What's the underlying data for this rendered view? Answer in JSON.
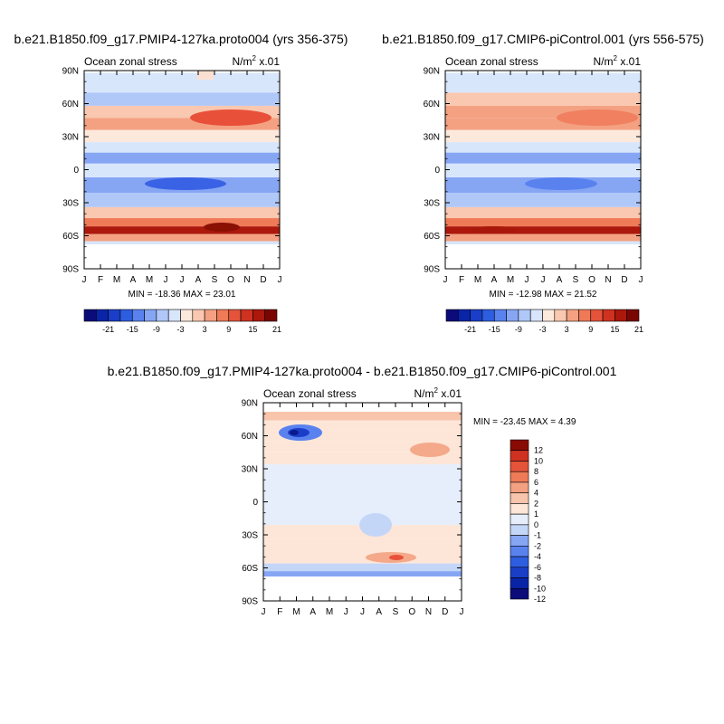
{
  "chart_data": [
    {
      "type": "heatmap",
      "title": "b.e21.B1850.f09_g17.PMIP4-127ka.proto004 (yrs 356-375)",
      "subtitle_left": "Ocean zonal stress",
      "units_base": "N/m",
      "units_exp": "2",
      "units_scale": "x.01",
      "x_ticks": [
        "J",
        "F",
        "M",
        "A",
        "M",
        "J",
        "J",
        "A",
        "S",
        "O",
        "N",
        "D",
        "J"
      ],
      "y_ticks": [
        "90N",
        "60N",
        "30N",
        "0",
        "30S",
        "60S",
        "90S"
      ],
      "ylim": [
        -90,
        90
      ],
      "stats": "MIN = -18.36 MAX =  23.01",
      "colorbar_labels": [
        "-21",
        "-15",
        "-9",
        "-3",
        "3",
        "9",
        "15",
        "21"
      ],
      "bands": [
        {
          "lat": 76,
          "value": -2
        },
        {
          "lat": 64,
          "value": -4
        },
        {
          "lat": 52,
          "value": 5
        },
        {
          "lat": 42,
          "value": 8
        },
        {
          "lat": 30,
          "value": 2
        },
        {
          "lat": 20,
          "value": -3
        },
        {
          "lat": 11,
          "value": -8
        },
        {
          "lat": 0,
          "value": -3
        },
        {
          "lat": -14,
          "value": -9
        },
        {
          "lat": -28,
          "value": -4
        },
        {
          "lat": -40,
          "value": 3
        },
        {
          "lat": -48,
          "value": 10
        },
        {
          "lat": -55,
          "value": 20
        },
        {
          "lat": -62,
          "value": 8
        },
        {
          "lat": -68,
          "value": -3
        }
      ]
    },
    {
      "type": "heatmap",
      "title": "b.e21.B1850.f09_g17.CMIP6-piControl.001 (yrs 556-575)",
      "subtitle_left": "Ocean zonal stress",
      "units_base": "N/m",
      "units_exp": "2",
      "units_scale": "x.01",
      "x_ticks": [
        "J",
        "F",
        "M",
        "A",
        "M",
        "J",
        "J",
        "A",
        "S",
        "O",
        "N",
        "D",
        "J"
      ],
      "y_ticks": [
        "90N",
        "60N",
        "30N",
        "0",
        "30S",
        "60S",
        "90S"
      ],
      "ylim": [
        -90,
        90
      ],
      "stats": "MIN = -12.98 MAX =  21.52",
      "colorbar_labels": [
        "-21",
        "-15",
        "-9",
        "-3",
        "3",
        "9",
        "15",
        "21"
      ],
      "bands": [
        {
          "lat": 76,
          "value": -2
        },
        {
          "lat": 64,
          "value": 3
        },
        {
          "lat": 52,
          "value": 6
        },
        {
          "lat": 42,
          "value": 7
        },
        {
          "lat": 30,
          "value": 2
        },
        {
          "lat": 20,
          "value": -3
        },
        {
          "lat": 11,
          "value": -8
        },
        {
          "lat": 0,
          "value": -3
        },
        {
          "lat": -14,
          "value": -8
        },
        {
          "lat": -28,
          "value": -4
        },
        {
          "lat": -40,
          "value": 3
        },
        {
          "lat": -48,
          "value": 10
        },
        {
          "lat": -55,
          "value": 19
        },
        {
          "lat": -62,
          "value": 8
        },
        {
          "lat": -68,
          "value": -3
        }
      ]
    },
    {
      "type": "heatmap",
      "title": "b.e21.B1850.f09_g17.PMIP4-127ka.proto004 - b.e21.B1850.f09_g17.CMIP6-piControl.001",
      "subtitle_left": "Ocean zonal stress",
      "units_base": "N/m",
      "units_exp": "2",
      "units_scale": "x.01",
      "x_ticks": [
        "J",
        "F",
        "M",
        "A",
        "M",
        "J",
        "J",
        "A",
        "S",
        "O",
        "N",
        "D",
        "J"
      ],
      "y_ticks": [
        "90N",
        "60N",
        "30N",
        "0",
        "30S",
        "60S",
        "90S"
      ],
      "ylim": [
        -90,
        90
      ],
      "stats": "MIN = -23.45 MAX =   4.39",
      "colorbar_labels": [
        "12",
        "10",
        "8",
        "6",
        "4",
        "2",
        "1",
        "0",
        "-1",
        "-2",
        "-4",
        "-6",
        "-8",
        "-10",
        "-12"
      ],
      "bands": [
        {
          "lat": 78,
          "value": 1.5
        },
        {
          "lat": 70,
          "value": 0.5
        },
        {
          "lat": 60,
          "value": 0.5
        },
        {
          "lat": 50,
          "value": 0.5
        },
        {
          "lat": 40,
          "value": 0.5
        },
        {
          "lat": 28,
          "value": -0.5
        },
        {
          "lat": 14,
          "value": -0.5
        },
        {
          "lat": 0,
          "value": -0.5
        },
        {
          "lat": -14,
          "value": -0.5
        },
        {
          "lat": -28,
          "value": 0.5
        },
        {
          "lat": -40,
          "value": 0.5
        },
        {
          "lat": -52,
          "value": 0.5
        },
        {
          "lat": -60,
          "value": -1.5
        },
        {
          "lat": -66,
          "value": -3
        }
      ]
    }
  ]
}
